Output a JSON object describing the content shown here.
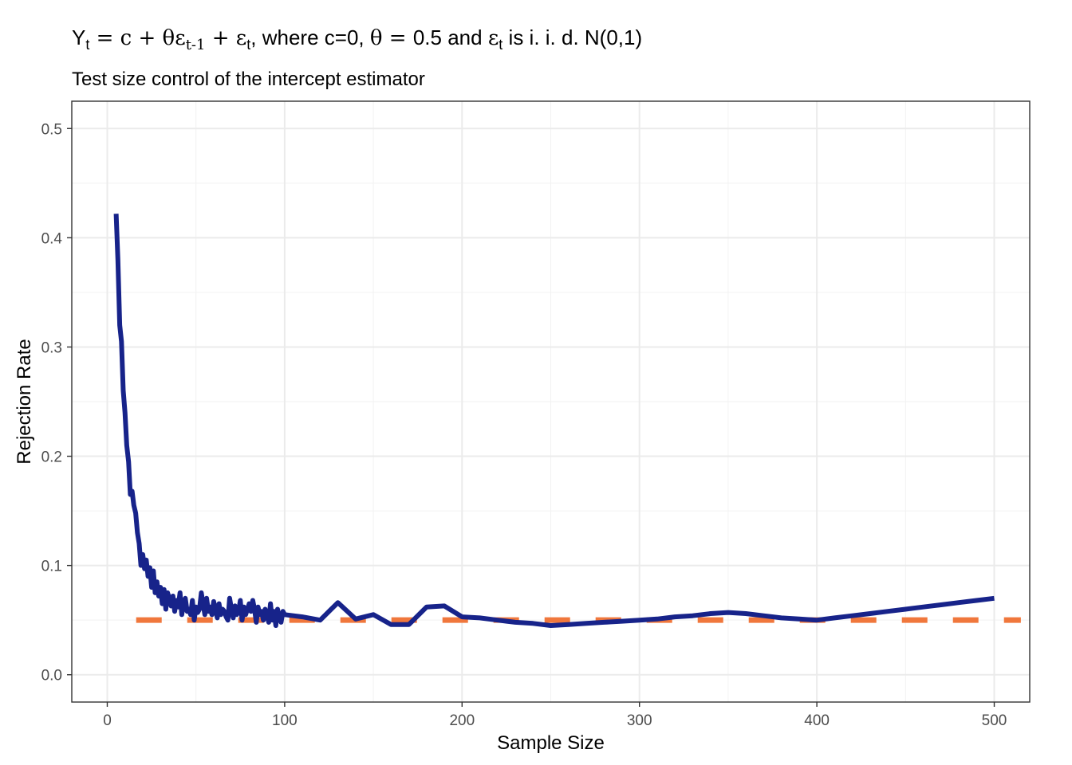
{
  "title": {
    "Y": "Y",
    "t1": "t",
    "eq1": " = c + θε",
    "tm1": "t-1",
    "plus": " + ε",
    "t2": "t",
    "mid": ", where c=0, ",
    "theta": "θ = ",
    "mid2": "0.5 and ",
    "eps": "ε",
    "t3": "t",
    "end": " is i. i. d. N(0,1)"
  },
  "colors": {
    "line": "#17238a",
    "reference": "#f0773c",
    "grid": "#ebebeb",
    "panel_border": "#333333"
  },
  "chart_data": {
    "type": "line",
    "subtitle": "Test size control of the intercept estimator",
    "xlabel": "Sample Size",
    "ylabel": "Rejection Rate",
    "xlim": [
      -20,
      520
    ],
    "ylim": [
      -0.025,
      0.525
    ],
    "x_ticks": [
      0,
      100,
      200,
      300,
      400,
      500
    ],
    "y_ticks": [
      0.0,
      0.1,
      0.2,
      0.3,
      0.4,
      0.5
    ],
    "x_tick_labels": [
      "0",
      "100",
      "200",
      "300",
      "400",
      "500"
    ],
    "y_tick_labels": [
      "0.0",
      "0.1",
      "0.2",
      "0.3",
      "0.4",
      "0.5"
    ],
    "grid": true,
    "legend": "none",
    "reference_line": {
      "y": 0.05,
      "style": "dashed"
    },
    "series": [
      {
        "x": [
          5,
          6,
          7,
          8,
          9,
          10,
          11,
          12,
          13,
          14,
          15,
          16,
          17,
          18,
          19,
          20,
          21,
          22,
          23,
          24,
          25,
          26,
          27,
          28,
          29,
          30,
          31,
          32,
          33,
          34,
          35,
          36,
          37,
          38,
          39,
          40,
          41,
          42,
          43,
          44,
          45,
          46,
          47,
          48,
          49,
          50,
          51,
          52,
          53,
          54,
          55,
          56,
          57,
          58,
          59,
          60,
          61,
          62,
          63,
          64,
          65,
          66,
          67,
          68,
          69,
          70,
          71,
          72,
          73,
          74,
          75,
          76,
          77,
          78,
          79,
          80,
          81,
          82,
          83,
          84,
          85,
          86,
          87,
          88,
          89,
          90,
          91,
          92,
          93,
          94,
          95,
          96,
          97,
          98,
          99,
          100,
          110,
          120,
          130,
          140,
          150,
          160,
          170,
          180,
          190,
          200,
          210,
          220,
          230,
          240,
          250,
          260,
          270,
          280,
          290,
          300,
          310,
          320,
          330,
          340,
          350,
          360,
          370,
          380,
          390,
          400,
          410,
          420,
          430,
          440,
          450,
          460,
          470,
          480,
          490,
          500
        ],
        "y": [
          0.422,
          0.38,
          0.32,
          0.305,
          0.26,
          0.24,
          0.21,
          0.195,
          0.165,
          0.168,
          0.155,
          0.148,
          0.13,
          0.12,
          0.1,
          0.11,
          0.097,
          0.105,
          0.09,
          0.098,
          0.08,
          0.095,
          0.075,
          0.085,
          0.072,
          0.08,
          0.065,
          0.078,
          0.06,
          0.075,
          0.07,
          0.063,
          0.072,
          0.058,
          0.068,
          0.062,
          0.075,
          0.055,
          0.065,
          0.07,
          0.058,
          0.06,
          0.055,
          0.068,
          0.05,
          0.062,
          0.057,
          0.06,
          0.075,
          0.065,
          0.055,
          0.07,
          0.058,
          0.062,
          0.055,
          0.067,
          0.06,
          0.052,
          0.065,
          0.055,
          0.06,
          0.058,
          0.053,
          0.05,
          0.07,
          0.06,
          0.052,
          0.063,
          0.055,
          0.058,
          0.068,
          0.05,
          0.062,
          0.055,
          0.06,
          0.065,
          0.058,
          0.068,
          0.06,
          0.048,
          0.062,
          0.055,
          0.058,
          0.05,
          0.06,
          0.055,
          0.048,
          0.065,
          0.05,
          0.058,
          0.045,
          0.06,
          0.052,
          0.048,
          0.058,
          0.055,
          0.053,
          0.05,
          0.066,
          0.051,
          0.055,
          0.046,
          0.046,
          0.062,
          0.063,
          0.053,
          0.052,
          0.05,
          0.048,
          0.047,
          0.045,
          0.046,
          0.047,
          0.048,
          0.049,
          0.05,
          0.051,
          0.053,
          0.054,
          0.056,
          0.057,
          0.056,
          0.054,
          0.052,
          0.051,
          0.05,
          0.052,
          0.054,
          0.056,
          0.058,
          0.06,
          0.062,
          0.064,
          0.066,
          0.068,
          0.07
        ]
      }
    ]
  }
}
